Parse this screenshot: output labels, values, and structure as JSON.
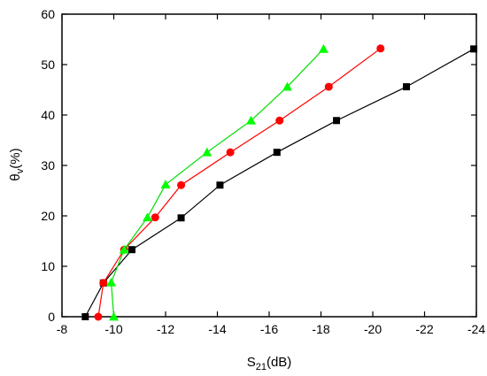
{
  "chart_data": {
    "type": "line",
    "xlabel": {
      "main": "S",
      "sub": "21",
      "rest": "(dB)"
    },
    "ylabel": {
      "main": "θ",
      "sub": "v",
      "rest": "(%)"
    },
    "xlim": [
      -8,
      -24
    ],
    "ylim": [
      0,
      60
    ],
    "x_ticks": [
      -8,
      -10,
      -12,
      -14,
      -16,
      -18,
      -20,
      -22,
      -24
    ],
    "y_ticks": [
      0,
      10,
      20,
      30,
      40,
      50,
      60
    ],
    "grid": false,
    "legend": "none",
    "series": [
      {
        "marker": "square",
        "color": "#000000",
        "points": [
          {
            "x": -8.9,
            "y": 0
          },
          {
            "x": -9.6,
            "y": 6.7
          },
          {
            "x": -10.7,
            "y": 13.3
          },
          {
            "x": -12.6,
            "y": 19.6
          },
          {
            "x": -14.1,
            "y": 26.1
          },
          {
            "x": -16.3,
            "y": 32.6
          },
          {
            "x": -18.6,
            "y": 38.9
          },
          {
            "x": -21.3,
            "y": 45.6
          },
          {
            "x": -23.9,
            "y": 53.1
          }
        ]
      },
      {
        "marker": "circle",
        "color": "#ff0000",
        "points": [
          {
            "x": -9.4,
            "y": 0
          },
          {
            "x": -9.6,
            "y": 6.7
          },
          {
            "x": -10.4,
            "y": 13.3
          },
          {
            "x": -11.6,
            "y": 19.7
          },
          {
            "x": -12.6,
            "y": 26.1
          },
          {
            "x": -14.5,
            "y": 32.6
          },
          {
            "x": -16.4,
            "y": 38.9
          },
          {
            "x": -18.3,
            "y": 45.6
          },
          {
            "x": -20.3,
            "y": 53.2
          }
        ]
      },
      {
        "marker": "triangle",
        "color": "#00ff00",
        "points": [
          {
            "x": -10.0,
            "y": 0
          },
          {
            "x": -9.9,
            "y": 6.8
          },
          {
            "x": -10.4,
            "y": 13.3
          },
          {
            "x": -11.3,
            "y": 19.7
          },
          {
            "x": -12.0,
            "y": 26.2
          },
          {
            "x": -13.6,
            "y": 32.6
          },
          {
            "x": -15.3,
            "y": 38.9
          },
          {
            "x": -16.7,
            "y": 45.6
          },
          {
            "x": -18.1,
            "y": 53.1
          }
        ]
      }
    ]
  }
}
